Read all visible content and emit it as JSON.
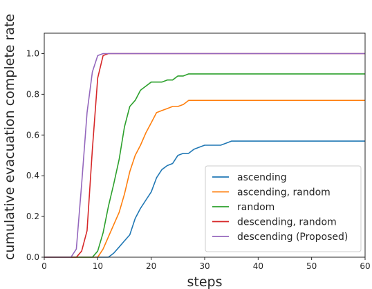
{
  "chart_data": {
    "type": "line",
    "title": "",
    "xlabel": "steps",
    "ylabel": "cumulative evacuation complete rate",
    "xlim": [
      0,
      60
    ],
    "ylim": [
      0,
      1.1
    ],
    "xticks": [
      "0",
      "10",
      "20",
      "30",
      "40",
      "50",
      "60"
    ],
    "yticks": [
      "0.0",
      "0.2",
      "0.4",
      "0.6",
      "0.8",
      "1.0"
    ],
    "grid": false,
    "legend_position": "lower-right",
    "series": [
      {
        "name": "ascending",
        "color": "#1f77b4",
        "x": [
          0,
          12,
          13,
          14,
          15,
          16,
          17,
          18,
          19,
          20,
          21,
          22,
          23,
          24,
          25,
          26,
          27,
          28,
          29,
          30,
          31,
          32,
          33,
          34,
          35,
          40,
          50,
          60
        ],
        "y": [
          0,
          0,
          0.02,
          0.05,
          0.08,
          0.11,
          0.19,
          0.24,
          0.28,
          0.32,
          0.39,
          0.43,
          0.45,
          0.46,
          0.5,
          0.51,
          0.51,
          0.53,
          0.54,
          0.55,
          0.55,
          0.55,
          0.55,
          0.56,
          0.57,
          0.57,
          0.57,
          0.57
        ]
      },
      {
        "name": "ascending, random",
        "color": "#ff7f0e",
        "x": [
          0,
          10,
          11,
          12,
          13,
          14,
          15,
          16,
          17,
          18,
          19,
          20,
          21,
          22,
          23,
          24,
          25,
          26,
          27,
          30,
          40,
          50,
          60
        ],
        "y": [
          0,
          0,
          0.04,
          0.1,
          0.16,
          0.22,
          0.31,
          0.42,
          0.5,
          0.55,
          0.61,
          0.66,
          0.71,
          0.72,
          0.73,
          0.74,
          0.74,
          0.75,
          0.77,
          0.77,
          0.77,
          0.77,
          0.77
        ]
      },
      {
        "name": "random",
        "color": "#2ca02c",
        "x": [
          0,
          9,
          10,
          11,
          12,
          13,
          14,
          15,
          16,
          17,
          18,
          19,
          20,
          21,
          22,
          23,
          24,
          25,
          26,
          27,
          30,
          40,
          50,
          60
        ],
        "y": [
          0,
          0,
          0.03,
          0.12,
          0.25,
          0.36,
          0.48,
          0.64,
          0.74,
          0.77,
          0.82,
          0.84,
          0.86,
          0.86,
          0.86,
          0.87,
          0.87,
          0.89,
          0.89,
          0.9,
          0.9,
          0.9,
          0.9,
          0.9
        ]
      },
      {
        "name": "descending, random",
        "color": "#d62728",
        "x": [
          0,
          6,
          7,
          8,
          9,
          10,
          11,
          12,
          15,
          20,
          30,
          40,
          50,
          60
        ],
        "y": [
          0,
          0,
          0.03,
          0.13,
          0.53,
          0.88,
          0.99,
          1.0,
          1.0,
          1.0,
          1.0,
          1.0,
          1.0,
          1.0
        ]
      },
      {
        "name": "descending (Proposed)",
        "color": "#9467bd",
        "x": [
          0,
          5,
          6,
          7,
          8,
          9,
          10,
          11,
          12,
          15,
          20,
          30,
          40,
          50,
          60
        ],
        "y": [
          0,
          0,
          0.04,
          0.36,
          0.71,
          0.91,
          0.99,
          1.0,
          1.0,
          1.0,
          1.0,
          1.0,
          1.0,
          1.0,
          1.0
        ]
      }
    ]
  }
}
